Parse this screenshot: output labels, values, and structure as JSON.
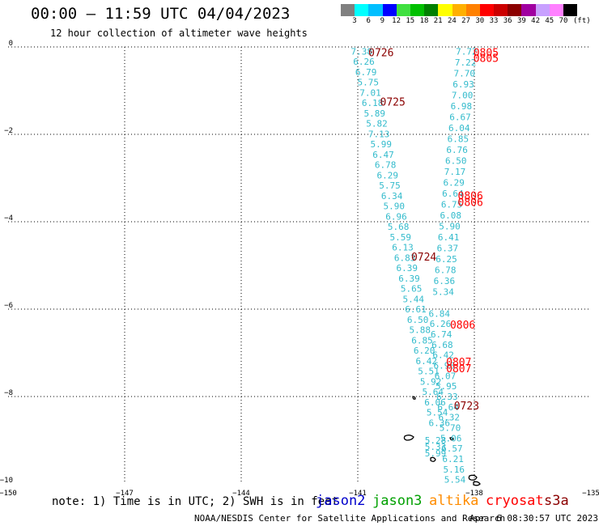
{
  "header": {
    "title": "00:00 – 11:59 UTC 04/04/2023",
    "subtitle": "12 hour collection of altimeter wave heights"
  },
  "colorbar": {
    "unit_label": "(ft)",
    "colors": [
      "#808080",
      "#00ffff",
      "#00bfff",
      "#0000ff",
      "#40e040",
      "#00c000",
      "#008000",
      "#ffff00",
      "#ffb000",
      "#ff8000",
      "#ff0000",
      "#cc0000",
      "#8b0000",
      "#a000a0",
      "#c8a0ff",
      "#ff80ff",
      "#000000"
    ],
    "labels": [
      "3",
      "6",
      "9",
      "12",
      "15",
      "18",
      "21",
      "24",
      "27",
      "30",
      "33",
      "36",
      "39",
      "42",
      "45",
      "70"
    ]
  },
  "map": {
    "lon_range": [
      -150,
      -135
    ],
    "lat_range": [
      -10,
      0
    ],
    "x_ticks": [
      {
        "value": -150,
        "label": "−150"
      },
      {
        "value": -147,
        "label": "−147"
      },
      {
        "value": -144,
        "label": "−144"
      },
      {
        "value": -141,
        "label": "−141"
      },
      {
        "value": -138,
        "label": "−138"
      },
      {
        "value": -135,
        "label": "−135"
      }
    ],
    "y_ticks": [
      {
        "value": 0,
        "label": "0"
      },
      {
        "value": -2,
        "label": "−2"
      },
      {
        "value": -4,
        "label": "−4"
      },
      {
        "value": -6,
        "label": "−6"
      },
      {
        "value": -8,
        "label": "−8"
      },
      {
        "value": -10,
        "label": "−10"
      }
    ],
    "grid": "dotted",
    "wave_color": "#33bbcc",
    "track_a": {
      "lon_start": -140.9,
      "lat_start": -0.1,
      "lon_end": -138.9,
      "lat_end": -8.6,
      "values": [
        "7.38",
        "6.26",
        "6.79",
        "5.75",
        "7.01",
        "6.18",
        "5.89",
        "5.82",
        "7.13",
        "5.99",
        "6.47",
        "6.78",
        "6.29",
        "5.75",
        "6.34",
        "5.90",
        "6.96",
        "5.68",
        "5.59",
        "6.13",
        "6.83",
        "6.39",
        "6.39",
        "5.65",
        "5.44",
        "6.61",
        "6.50",
        "5.88",
        "6.85",
        "6.20",
        "6.42",
        "5.51",
        "5.92",
        "5.64",
        "6.06",
        "5.54",
        "6.36"
      ]
    },
    "track_b": {
      "lon_start": -138.2,
      "lat_start": -0.1,
      "lon_end": -138.8,
      "lat_end": -5.6,
      "values": [
        "7.72",
        "7.22",
        "7.70",
        "6.93",
        "7.00",
        "6.98",
        "6.67",
        "6.04",
        "6.85",
        "6.76",
        "6.50",
        "7.17",
        "6.29",
        "6.64",
        "6.75",
        "6.08",
        "5.90",
        "6.41",
        "6.37",
        "6.25",
        "6.78",
        "6.36",
        "5.34"
      ]
    },
    "track_c": {
      "lon_start": -138.9,
      "lat_start": -6.1,
      "lon_end": -138.5,
      "lat_end": -9.9,
      "values": [
        "6.84",
        "6.26",
        "6.74",
        "6.68",
        "6.42",
        "6.98",
        "6.07",
        "5.95",
        "6.33",
        "6.64",
        "6.32",
        "5.70",
        "5.06",
        "6.57",
        "6.21",
        "5.16",
        "5.54"
      ]
    },
    "extra_values": [
      {
        "text": "5.28",
        "lon": -139.0,
        "lat": -9.0
      },
      {
        "text": "5.33",
        "lon": -139.0,
        "lat": -9.15
      },
      {
        "text": "5.99",
        "lon": -139.0,
        "lat": -9.3
      }
    ],
    "pass_labels": [
      {
        "text": "0726",
        "lon": -140.4,
        "lat": -0.12,
        "color": "#8b0000"
      },
      {
        "text": "0805",
        "lon": -137.7,
        "lat": -0.12,
        "color": "#ff0000"
      },
      {
        "text": "0805",
        "lon": -137.7,
        "lat": -0.25,
        "color": "#ff0000"
      },
      {
        "text": "0725",
        "lon": -140.1,
        "lat": -1.25,
        "color": "#8b0000"
      },
      {
        "text": "0806",
        "lon": -138.1,
        "lat": -3.4,
        "color": "#ff0000"
      },
      {
        "text": "0806",
        "lon": -138.1,
        "lat": -3.55,
        "color": "#ff0000"
      },
      {
        "text": "0724",
        "lon": -139.3,
        "lat": -4.8,
        "color": "#8b0000"
      },
      {
        "text": "0806",
        "lon": -138.3,
        "lat": -6.35,
        "color": "#ff0000"
      },
      {
        "text": "0807",
        "lon": -138.4,
        "lat": -7.2,
        "color": "#ff0000"
      },
      {
        "text": "0807",
        "lon": -138.4,
        "lat": -7.35,
        "color": "#ff0000"
      },
      {
        "text": "0723",
        "lon": -138.2,
        "lat": -8.2,
        "color": "#8b0000"
      }
    ]
  },
  "footer": {
    "note": "note: 1) Time is in UTC; 2) SWH is in feet",
    "missions": [
      {
        "name": "jason2",
        "color": "#0000cc"
      },
      {
        "name": "jason3",
        "color": "#00a000"
      },
      {
        "name": "altika",
        "color": "#ff8c00"
      },
      {
        "name": "cryosat",
        "color": "#ff0000"
      },
      {
        "name": "s3a",
        "color": "#8b0000"
      }
    ],
    "credit": "NOAA/NESDIS Center for Satellite Applications and Research",
    "timestamp": "Apr  6 08:30:57 UTC 2023"
  }
}
